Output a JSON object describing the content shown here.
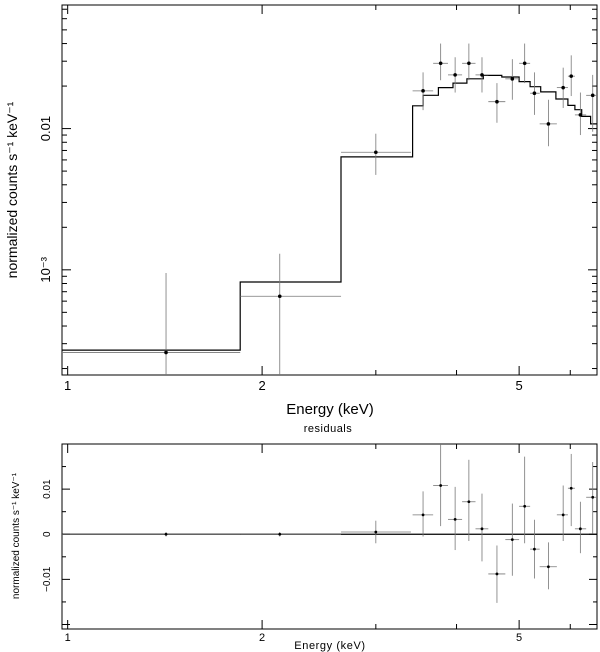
{
  "chart_data": [
    {
      "type": "scatter",
      "panel": "spectrum",
      "xscale": "log",
      "yscale": "log",
      "xlabel": "Energy (keV)",
      "ylabel": "normalized counts s⁻¹ keV⁻¹",
      "xlim": [
        0.98,
        6.6
      ],
      "ylim": [
        0.00018,
        0.075
      ],
      "x_ticks": [
        {
          "value": 1,
          "label": "1"
        },
        {
          "value": 2,
          "label": "2"
        },
        {
          "value": 5,
          "label": "5"
        }
      ],
      "y_ticks": [
        {
          "value": 0.001,
          "label": "10⁻³"
        },
        {
          "value": 0.01,
          "label": "0.01"
        }
      ],
      "data_points": [
        {
          "x": 1.42,
          "xlo": 0.98,
          "xhi": 1.85,
          "y": 0.00026,
          "ylo": 0.00018,
          "yhi": 0.00095
        },
        {
          "x": 2.13,
          "xlo": 1.85,
          "xhi": 2.65,
          "y": 0.00065,
          "ylo": 0.00018,
          "yhi": 0.0013
        },
        {
          "x": 3.0,
          "xlo": 2.65,
          "xhi": 3.4,
          "y": 0.0068,
          "ylo": 0.0047,
          "yhi": 0.0092
        },
        {
          "x": 3.55,
          "xlo": 3.42,
          "xhi": 3.68,
          "y": 0.0185,
          "ylo": 0.0135,
          "yhi": 0.025
        },
        {
          "x": 3.78,
          "xlo": 3.68,
          "xhi": 3.88,
          "y": 0.029,
          "ylo": 0.022,
          "yhi": 0.04
        },
        {
          "x": 3.98,
          "xlo": 3.88,
          "xhi": 4.08,
          "y": 0.024,
          "ylo": 0.018,
          "yhi": 0.032
        },
        {
          "x": 4.18,
          "xlo": 4.08,
          "xhi": 4.28,
          "y": 0.029,
          "ylo": 0.022,
          "yhi": 0.04
        },
        {
          "x": 4.38,
          "xlo": 4.28,
          "xhi": 4.48,
          "y": 0.024,
          "ylo": 0.018,
          "yhi": 0.032
        },
        {
          "x": 4.62,
          "xlo": 4.48,
          "xhi": 4.76,
          "y": 0.0155,
          "ylo": 0.011,
          "yhi": 0.021
        },
        {
          "x": 4.88,
          "xlo": 4.76,
          "xhi": 5.0,
          "y": 0.0225,
          "ylo": 0.016,
          "yhi": 0.031
        },
        {
          "x": 5.1,
          "xlo": 5.0,
          "xhi": 5.2,
          "y": 0.029,
          "ylo": 0.021,
          "yhi": 0.04
        },
        {
          "x": 5.28,
          "xlo": 5.2,
          "xhi": 5.38,
          "y": 0.0178,
          "ylo": 0.0125,
          "yhi": 0.025
        },
        {
          "x": 5.55,
          "xlo": 5.38,
          "xhi": 5.72,
          "y": 0.0108,
          "ylo": 0.0075,
          "yhi": 0.016
        },
        {
          "x": 5.85,
          "xlo": 5.72,
          "xhi": 5.95,
          "y": 0.0195,
          "ylo": 0.014,
          "yhi": 0.027
        },
        {
          "x": 6.02,
          "xlo": 5.95,
          "xhi": 6.1,
          "y": 0.0235,
          "ylo": 0.017,
          "yhi": 0.033
        },
        {
          "x": 6.22,
          "xlo": 6.1,
          "xhi": 6.35,
          "y": 0.0125,
          "ylo": 0.009,
          "yhi": 0.018
        },
        {
          "x": 6.5,
          "xlo": 6.35,
          "xhi": 6.6,
          "y": 0.0172,
          "ylo": 0.0095,
          "yhi": 0.024
        }
      ],
      "model_steps": [
        {
          "x0": 0.98,
          "x1": 1.85,
          "y": 0.00027
        },
        {
          "x0": 1.85,
          "x1": 2.65,
          "y": 0.00082
        },
        {
          "x0": 2.65,
          "x1": 3.42,
          "y": 0.0063
        },
        {
          "x0": 3.42,
          "x1": 3.55,
          "y": 0.0145
        },
        {
          "x0": 3.55,
          "x1": 3.75,
          "y": 0.0172
        },
        {
          "x0": 3.75,
          "x1": 3.95,
          "y": 0.0195
        },
        {
          "x0": 3.95,
          "x1": 4.15,
          "y": 0.021
        },
        {
          "x0": 4.15,
          "x1": 4.4,
          "y": 0.0225
        },
        {
          "x0": 4.4,
          "x1": 4.7,
          "y": 0.0238
        },
        {
          "x0": 4.7,
          "x1": 5.0,
          "y": 0.0232
        },
        {
          "x0": 5.0,
          "x1": 5.2,
          "y": 0.0215
        },
        {
          "x0": 5.2,
          "x1": 5.4,
          "y": 0.0198
        },
        {
          "x0": 5.4,
          "x1": 5.7,
          "y": 0.0182
        },
        {
          "x0": 5.7,
          "x1": 5.95,
          "y": 0.0162
        },
        {
          "x0": 5.95,
          "x1": 6.1,
          "y": 0.0146
        },
        {
          "x0": 6.1,
          "x1": 6.25,
          "y": 0.0136
        },
        {
          "x0": 6.25,
          "x1": 6.45,
          "y": 0.0122
        },
        {
          "x0": 6.45,
          "x1": 6.6,
          "y": 0.0108
        }
      ]
    },
    {
      "type": "scatter",
      "panel": "residuals",
      "title": "residuals",
      "xscale": "log",
      "yscale": "linear",
      "xlabel": "Energy (keV)",
      "ylabel": "normalized counts s⁻¹ keV⁻¹",
      "xlim": [
        0.98,
        6.6
      ],
      "ylim": [
        -0.021,
        0.02
      ],
      "x_ticks": [
        {
          "value": 1,
          "label": "1"
        },
        {
          "value": 2,
          "label": "2"
        },
        {
          "value": 5,
          "label": "5"
        }
      ],
      "y_ticks": [
        {
          "value": 0.01,
          "label": "0.01"
        },
        {
          "value": 0,
          "label": "0"
        },
        {
          "value": -0.01,
          "label": "−0.01"
        }
      ],
      "zero_line": true,
      "data_points": [
        {
          "x": 1.42,
          "xlo": 0.98,
          "xhi": 1.85,
          "y": 0.0,
          "ylo": -0.0005,
          "yhi": 0.0005
        },
        {
          "x": 2.13,
          "xlo": 1.85,
          "xhi": 2.65,
          "y": 0.0,
          "ylo": -0.0005,
          "yhi": 0.0005
        },
        {
          "x": 3.0,
          "xlo": 2.65,
          "xhi": 3.4,
          "y": 0.0005,
          "ylo": -0.002,
          "yhi": 0.003
        },
        {
          "x": 3.55,
          "xlo": 3.42,
          "xhi": 3.68,
          "y": 0.0043,
          "ylo": -0.0005,
          "yhi": 0.0095
        },
        {
          "x": 3.78,
          "xlo": 3.68,
          "xhi": 3.88,
          "y": 0.0108,
          "ylo": 0.0018,
          "yhi": 0.0198
        },
        {
          "x": 3.98,
          "xlo": 3.88,
          "xhi": 4.08,
          "y": 0.0033,
          "ylo": -0.0035,
          "yhi": 0.0105
        },
        {
          "x": 4.18,
          "xlo": 4.08,
          "xhi": 4.28,
          "y": 0.0072,
          "ylo": -0.0015,
          "yhi": 0.0165
        },
        {
          "x": 4.38,
          "xlo": 4.28,
          "xhi": 4.48,
          "y": 0.0012,
          "ylo": -0.006,
          "yhi": 0.009
        },
        {
          "x": 4.62,
          "xlo": 4.48,
          "xhi": 4.76,
          "y": -0.0088,
          "ylo": -0.0152,
          "yhi": -0.0025
        },
        {
          "x": 4.88,
          "xlo": 4.76,
          "xhi": 5.0,
          "y": -0.0012,
          "ylo": -0.0092,
          "yhi": 0.0068
        },
        {
          "x": 5.1,
          "xlo": 5.0,
          "xhi": 5.2,
          "y": 0.0062,
          "ylo": -0.002,
          "yhi": 0.0172
        },
        {
          "x": 5.28,
          "xlo": 5.2,
          "xhi": 5.38,
          "y": -0.0033,
          "ylo": -0.0098,
          "yhi": 0.0032
        },
        {
          "x": 5.55,
          "xlo": 5.38,
          "xhi": 5.72,
          "y": -0.0072,
          "ylo": -0.0122,
          "yhi": -0.0018
        },
        {
          "x": 5.85,
          "xlo": 5.72,
          "xhi": 5.95,
          "y": 0.0043,
          "ylo": -0.0015,
          "yhi": 0.0108
        },
        {
          "x": 6.02,
          "xlo": 5.95,
          "xhi": 6.1,
          "y": 0.0102,
          "ylo": 0.0018,
          "yhi": 0.0178
        },
        {
          "x": 6.22,
          "xlo": 6.1,
          "xhi": 6.35,
          "y": 0.0012,
          "ylo": -0.0042,
          "yhi": 0.0072
        },
        {
          "x": 6.5,
          "xlo": 6.35,
          "xhi": 6.6,
          "y": 0.0082,
          "ylo": 0.0002,
          "yhi": 0.016
        }
      ]
    }
  ]
}
